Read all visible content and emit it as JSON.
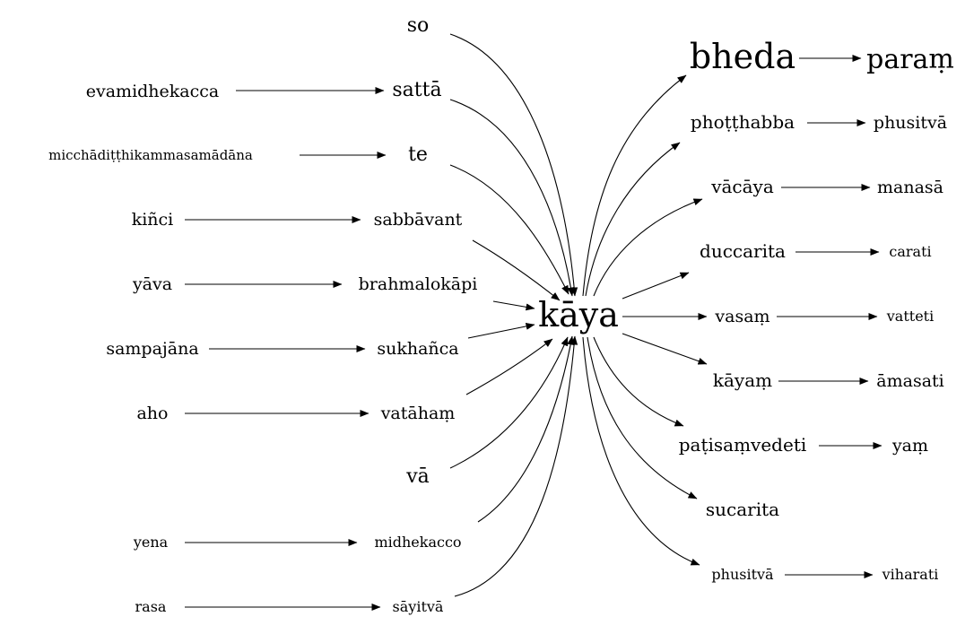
{
  "center": "kāya",
  "left_chains": [
    {
      "source": "",
      "target": "so"
    },
    {
      "source": "evamidhekacca",
      "target": "sattā"
    },
    {
      "source": "micchādiṭṭhikammasamādāna",
      "target": "te"
    },
    {
      "source": "kiñci",
      "target": "sabbāvant"
    },
    {
      "source": "yāva",
      "target": "brahmalokāpi"
    },
    {
      "source": "sampajāna",
      "target": "sukhañca"
    },
    {
      "source": "aho",
      "target": "vatāhaṃ"
    },
    {
      "source": "",
      "target": "vā"
    },
    {
      "source": "yena",
      "target": "midhekacco"
    },
    {
      "source": "rasa",
      "target": "sāyitvā"
    }
  ],
  "right_chains": [
    {
      "node": "bheda",
      "next": "paraṃ"
    },
    {
      "node": "phoṭṭhabba",
      "next": "phusitvā"
    },
    {
      "node": "vācāya",
      "next": "manasā"
    },
    {
      "node": "duccarita",
      "next": "carati"
    },
    {
      "node": "vasaṃ",
      "next": "vatteti"
    },
    {
      "node": "kāyaṃ",
      "next": "āmasati"
    },
    {
      "node": "paṭisaṃvedeti",
      "next": "yaṃ"
    },
    {
      "node": "sucarita",
      "next": ""
    },
    {
      "node": "phusitvā",
      "next": "viharati"
    }
  ]
}
